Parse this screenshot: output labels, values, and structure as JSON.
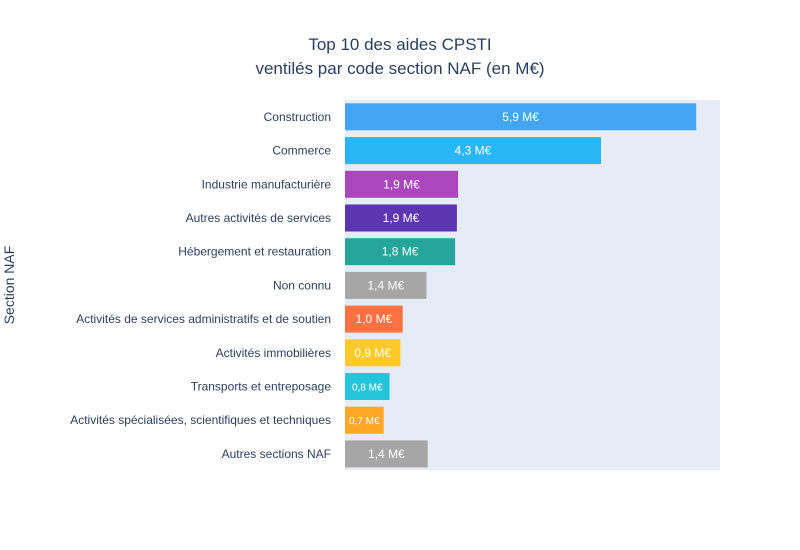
{
  "chart_data": {
    "type": "bar",
    "orientation": "horizontal",
    "title": [
      "Top 10 des aides CPSTI",
      "ventilés par code section NAF (en M€)"
    ],
    "ylabel": "Section NAF",
    "xlabel": "",
    "xlim": [
      0,
      6.3
    ],
    "grid": false,
    "legend": "none",
    "background": "#e5ecf6",
    "categories": [
      "Construction",
      "Commerce",
      "Industrie manufacturière",
      "Autres activités de services",
      "Hébergement et restauration",
      "Non connu",
      "Activités de services administratifs et de soutien",
      "Activités immobilières",
      "Transports et entreposage",
      "Activités spécialisées, scientifiques et techniques",
      "Autres sections NAF"
    ],
    "values": [
      5.9,
      4.3,
      1.9,
      1.88,
      1.85,
      1.37,
      0.97,
      0.93,
      0.75,
      0.65,
      1.39
    ],
    "labels": [
      "5,9 M€",
      "4,3 M€",
      "1,9 M€",
      "1,9 M€",
      "1,8 M€",
      "1,4 M€",
      "1,0 M€",
      "0,9 M€",
      "0,8 M€",
      "0,7 M€",
      "1,4 M€"
    ],
    "colors": [
      "#42a5f5",
      "#29b6f6",
      "#ab47bc",
      "#5e35b1",
      "#26a69a",
      "#a6a6a6",
      "#ff7043",
      "#ffca28",
      "#26c6da",
      "#ffa726",
      "#a6a6a6"
    ]
  }
}
